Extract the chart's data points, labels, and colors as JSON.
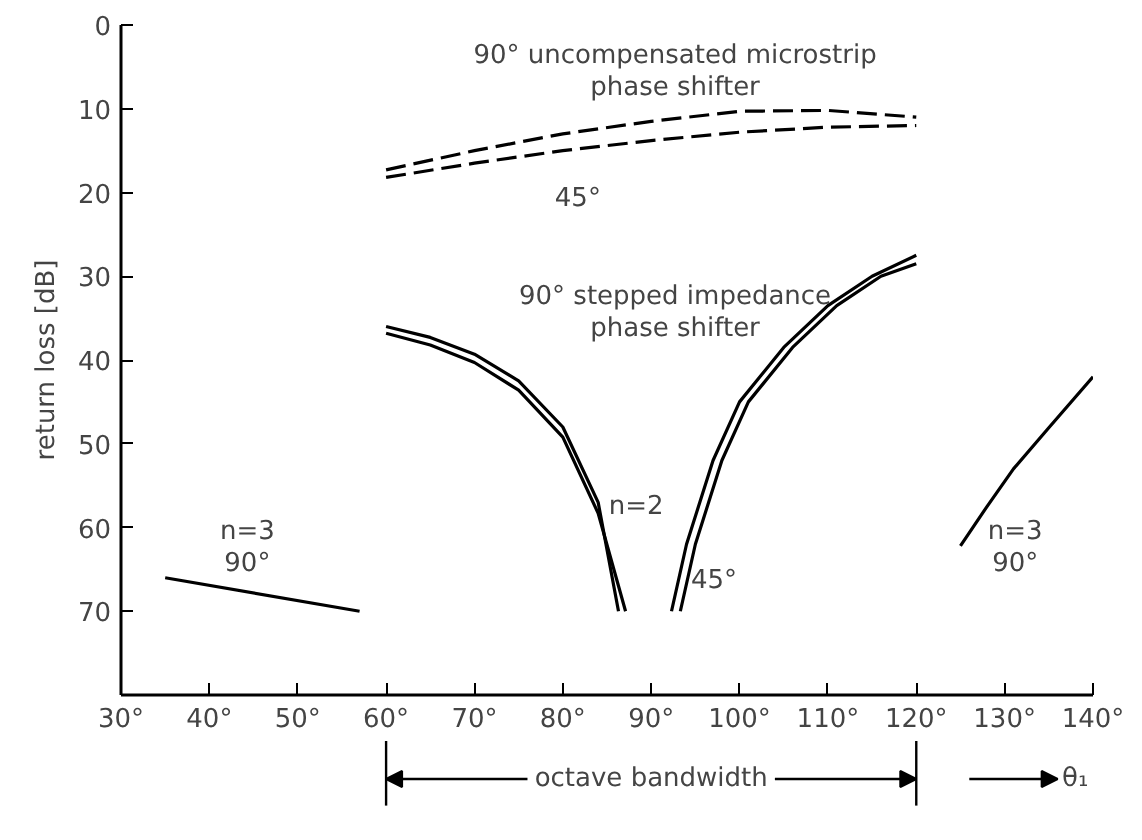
{
  "chart_data": {
    "type": "line",
    "ylabel": "return loss [dB]",
    "xlabel": "θ₁",
    "xlim": [
      30,
      140
    ],
    "ylim": [
      80,
      0
    ],
    "xticks": [
      {
        "value": 30,
        "label": "30°"
      },
      {
        "value": 40,
        "label": "40°"
      },
      {
        "value": 50,
        "label": "50°"
      },
      {
        "value": 60,
        "label": "60°"
      },
      {
        "value": 70,
        "label": "70°"
      },
      {
        "value": 80,
        "label": "80°"
      },
      {
        "value": 90,
        "label": "90°"
      },
      {
        "value": 100,
        "label": "100°"
      },
      {
        "value": 110,
        "label": "110°"
      },
      {
        "value": 120,
        "label": "120°"
      },
      {
        "value": 130,
        "label": "130°"
      },
      {
        "value": 140,
        "label": "140°"
      }
    ],
    "yticks": [
      0,
      10,
      20,
      30,
      40,
      50,
      60,
      70
    ],
    "grid": false,
    "marker": "none",
    "series": [
      {
        "color": "#000000",
        "line_style": "dashed",
        "x": [
          60,
          70,
          80,
          90,
          100,
          110,
          120
        ],
        "values": [
          17.3,
          15,
          13,
          11.5,
          10.3,
          10.2,
          11
        ]
      },
      {
        "color": "#000000",
        "line_style": "dashed",
        "x": [
          60,
          70,
          80,
          90,
          100,
          110,
          120
        ],
        "values": [
          18.2,
          16.5,
          15,
          13.8,
          12.8,
          12.2,
          12
        ]
      },
      {
        "color": "#000000",
        "line_style": "solid",
        "x": [
          60,
          65,
          70,
          75,
          80,
          84,
          86.3,
          null,
          92.3,
          94,
          97,
          100,
          105,
          110,
          115,
          120
        ],
        "values": [
          36,
          37.3,
          39.3,
          42.5,
          48,
          57,
          70,
          null,
          70,
          62,
          52,
          45,
          38.5,
          33.5,
          30,
          27.5
        ]
      },
      {
        "color": "#000000",
        "line_style": "solid",
        "x": [
          60,
          65,
          70,
          75,
          80,
          84,
          87.1,
          null,
          93.3,
          95,
          98,
          101,
          106,
          111,
          116,
          120
        ],
        "values": [
          36.8,
          38.2,
          40.3,
          43.6,
          49.2,
          58.3,
          70,
          null,
          70,
          62,
          52,
          45,
          38.5,
          33.5,
          30,
          28.5
        ]
      },
      {
        "color": "#000000",
        "line_style": "solid",
        "x": [
          35,
          57
        ],
        "values": [
          66,
          70
        ]
      },
      {
        "color": "#000000",
        "line_style": "solid",
        "x": [
          125,
          128,
          131,
          134.9,
          140
        ],
        "values": [
          62.2,
          57.5,
          53,
          48.2,
          42
        ]
      }
    ],
    "annotations": [
      "90° uncompensated microstrip\nphase shifter",
      "45°",
      "90° stepped impedance\nphase shifter",
      "n=2",
      "45°",
      "n=3\n90°",
      "n=3\n90°",
      "octave bandwidth"
    ]
  }
}
